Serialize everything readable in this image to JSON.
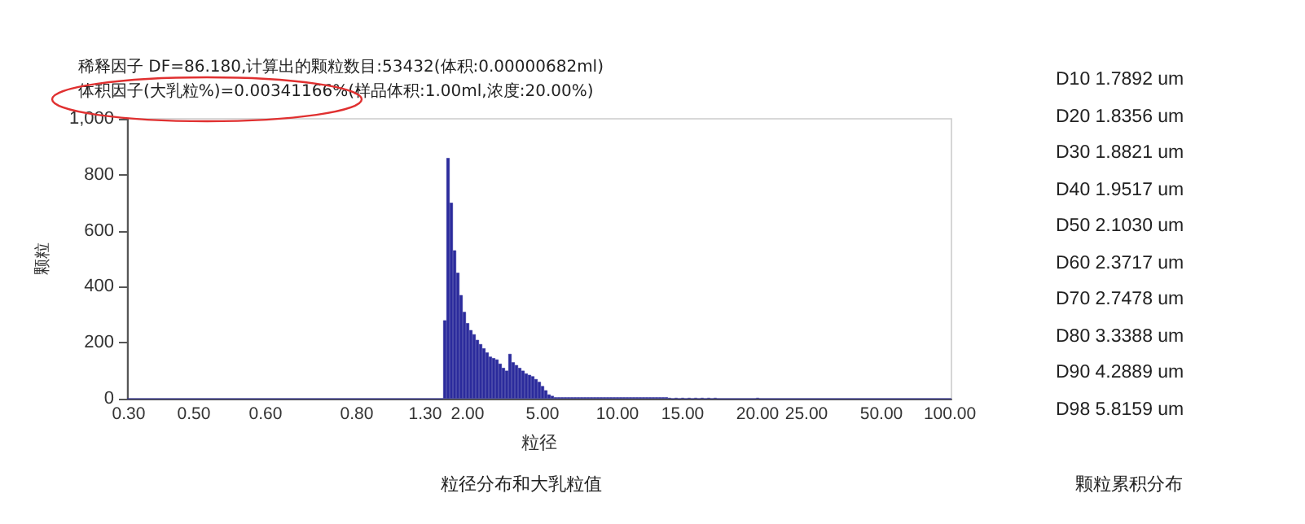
{
  "chart_data": {
    "type": "bar",
    "title": "稀释因子 DF=86.180,计算出的颗粒数目:53432(体积:0.00000682ml)",
    "subtitle": "体积因子(大乳粒%)=0.00341166%(样品体积:1.00ml,浓度:20.00%)",
    "xlabel": "粒径",
    "ylabel": "颗粒",
    "categories": [
      "0.30",
      null,
      null,
      null,
      null,
      null,
      null,
      null,
      null,
      null,
      null,
      null,
      null,
      null,
      null,
      null,
      null,
      null,
      null,
      null,
      "0.50",
      null,
      null,
      null,
      null,
      null,
      null,
      null,
      null,
      null,
      null,
      null,
      null,
      null,
      null,
      null,
      null,
      null,
      null,
      null,
      null,
      null,
      "0.60",
      null,
      null,
      null,
      null,
      null,
      null,
      null,
      null,
      null,
      null,
      null,
      null,
      null,
      null,
      null,
      null,
      null,
      null,
      null,
      null,
      null,
      null,
      null,
      null,
      null,
      null,
      null,
      "0.80",
      null,
      null,
      null,
      null,
      null,
      null,
      null,
      null,
      null,
      null,
      null,
      null,
      null,
      null,
      null,
      null,
      null,
      null,
      null,
      null,
      "1.30",
      null,
      null,
      null,
      null,
      null,
      null,
      null,
      null,
      null,
      null,
      null,
      null,
      "2.00",
      null,
      null,
      null,
      null,
      null,
      null,
      null,
      null,
      null,
      null,
      null,
      null,
      null,
      null,
      null,
      null,
      null,
      null,
      null,
      null,
      null,
      null,
      "5.00",
      null,
      null,
      null,
      null,
      null,
      null,
      null,
      null,
      null,
      null,
      null,
      null,
      null,
      null,
      null,
      null,
      null,
      null,
      null,
      null,
      null,
      null,
      "10.00",
      null,
      null,
      null,
      null,
      null,
      null,
      null,
      null,
      null,
      null,
      null,
      null,
      null,
      null,
      null,
      null,
      null,
      null,
      null,
      "15.00",
      null,
      null,
      null,
      null,
      null,
      null,
      null,
      null,
      null,
      null,
      null,
      null,
      null,
      null,
      null,
      null,
      null,
      null,
      null,
      null,
      null,
      null,
      "20.00",
      null,
      null,
      null,
      null,
      null,
      null,
      null,
      null,
      null,
      null,
      null,
      null,
      null,
      null,
      "25.00",
      null,
      null,
      null,
      null,
      null,
      null,
      null,
      null,
      null,
      null,
      null,
      null,
      null,
      null,
      null,
      null,
      null,
      null,
      null,
      null,
      null,
      null,
      "50.00",
      null,
      null,
      null,
      null,
      null,
      null,
      null,
      null,
      null,
      null,
      null,
      null,
      null,
      null,
      null,
      null,
      null,
      null,
      null,
      null,
      "100.00"
    ],
    "values": [
      0,
      0,
      0,
      0,
      0,
      0,
      0,
      0,
      0,
      0,
      0,
      0,
      0,
      0,
      0,
      0,
      0,
      0,
      0,
      0,
      0,
      0,
      0,
      0,
      0,
      0,
      0,
      0,
      0,
      0,
      0,
      0,
      0,
      0,
      0,
      0,
      0,
      0,
      0,
      0,
      0,
      0,
      0,
      0,
      0,
      0,
      0,
      0,
      0,
      0,
      0,
      0,
      0,
      0,
      0,
      0,
      0,
      0,
      0,
      0,
      0,
      0,
      0,
      0,
      0,
      0,
      0,
      0,
      0,
      0,
      0,
      0,
      0,
      0,
      0,
      0,
      0,
      0,
      0,
      0,
      0,
      0,
      0,
      0,
      0,
      0,
      0,
      0,
      0,
      0,
      0,
      0,
      0,
      0,
      0,
      0,
      0,
      280,
      860,
      700,
      530,
      450,
      370,
      310,
      270,
      245,
      230,
      210,
      195,
      180,
      165,
      150,
      145,
      140,
      125,
      110,
      100,
      160,
      130,
      120,
      110,
      100,
      90,
      85,
      80,
      70,
      60,
      45,
      30,
      15,
      10,
      5,
      5,
      5,
      5,
      5,
      5,
      5,
      5,
      5,
      5,
      5,
      5,
      5,
      5,
      5,
      5,
      5,
      5,
      5,
      5,
      5,
      5,
      5,
      5,
      5,
      5,
      5,
      5,
      5,
      5,
      5,
      5,
      5,
      5,
      5,
      3,
      0,
      3,
      0,
      3,
      0,
      3,
      0,
      3,
      0,
      3,
      0,
      3,
      0,
      3,
      0,
      0,
      0,
      0,
      0,
      0,
      0,
      0,
      0,
      0,
      0,
      0,
      3,
      0,
      0,
      0,
      0,
      0,
      0,
      0,
      0,
      0,
      0,
      0,
      0,
      0,
      0,
      0,
      0,
      0,
      0,
      0,
      0,
      0,
      0,
      0,
      0,
      0,
      0,
      0,
      0,
      0,
      0,
      0,
      0,
      0,
      0,
      0,
      0,
      0,
      0,
      0,
      0,
      0,
      0,
      0,
      0,
      0,
      0,
      0,
      0,
      0,
      0,
      0,
      0,
      0,
      0,
      0,
      0,
      0,
      0,
      0
    ],
    "color": "#2b2b9c",
    "ylim": [
      0,
      1000
    ],
    "yticks": [
      0,
      200,
      400,
      600,
      800,
      {
        "value": 1000,
        "label": "1,000"
      }
    ],
    "grid": false,
    "annotations": [
      "D10  1.7892 um",
      "D20  1.8356 um",
      "D30  1.8821 um",
      "D40  1.9517 um",
      "D50  2.1030 um",
      "D60  2.3717 um",
      "D70  2.7478 um",
      "D80  3.3388 um",
      "D90  4.2889 um",
      "D98  5.8159 um",
      "颗粒累积分布",
      "粒径分布和大乳粒值"
    ]
  }
}
